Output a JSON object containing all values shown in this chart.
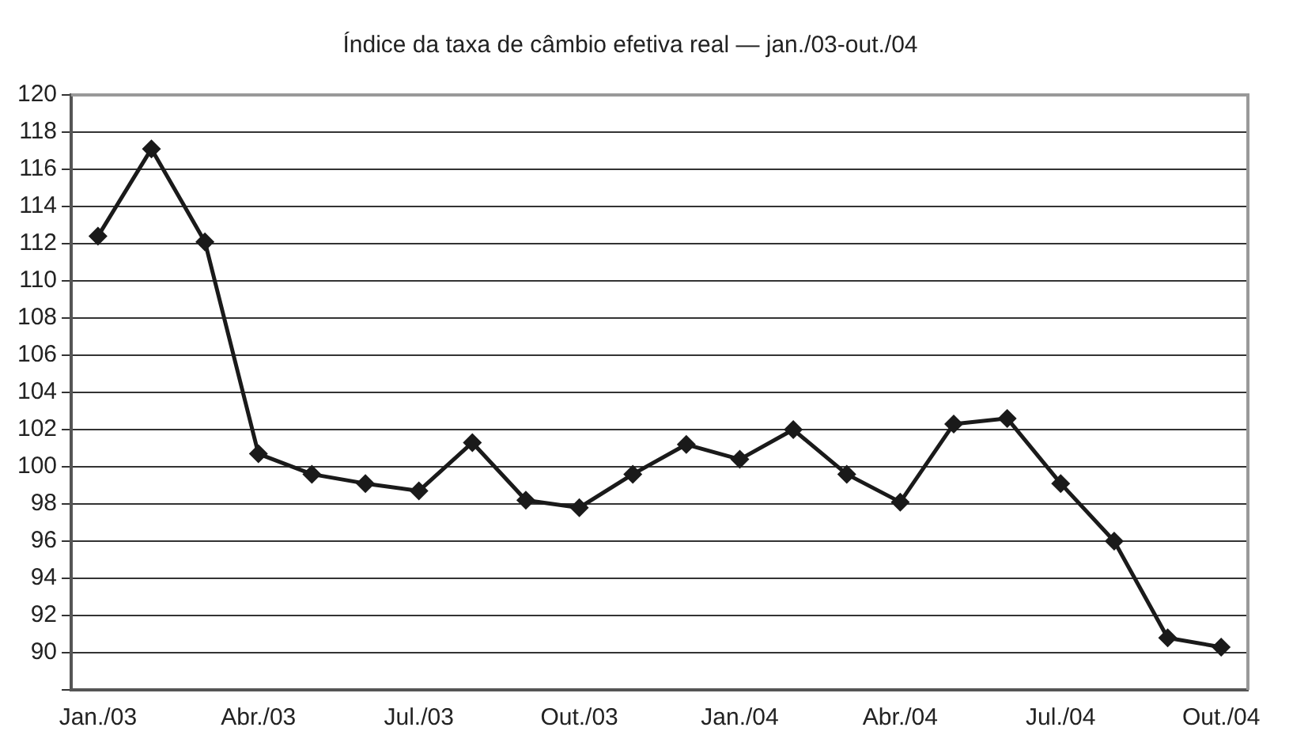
{
  "chart_data": {
    "type": "line",
    "title": "Índice da taxa de câmbio efetiva real — jan./03-out./04",
    "categories": [
      "Jan./03",
      null,
      null,
      "Abr./03",
      null,
      null,
      "Jul./03",
      null,
      null,
      "Out./03",
      null,
      null,
      "Jan./04",
      null,
      null,
      "Abr./04",
      null,
      null,
      "Jul./04",
      null,
      null,
      "Out./04"
    ],
    "series": [
      {
        "color": "#1a1a1a",
        "values": [
          112.4,
          117.1,
          112.1,
          100.7,
          99.6,
          99.1,
          98.7,
          101.3,
          98.2,
          97.8,
          99.6,
          101.2,
          100.4,
          102.0,
          99.6,
          98.1,
          102.3,
          102.6,
          99.1,
          96.0,
          90.8,
          90.3
        ]
      }
    ],
    "ylim": [
      88,
      120
    ],
    "yticks": [
      {
        "value": 88,
        "label": null
      },
      90,
      92,
      94,
      96,
      98,
      100,
      102,
      104,
      106,
      108,
      110,
      112,
      114,
      116,
      118,
      120
    ],
    "grid": "y",
    "legend": false,
    "marker": "diamond",
    "line_style": "solid"
  }
}
